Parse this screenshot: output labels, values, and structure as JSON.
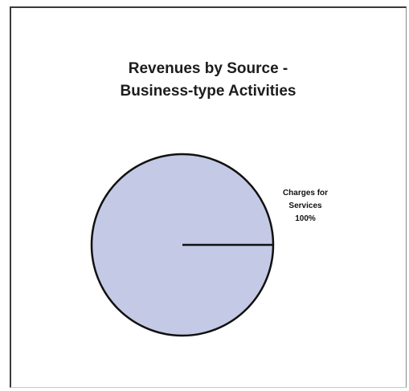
{
  "chart_data": {
    "type": "pie",
    "title_lines": [
      "Revenues by Source -",
      "Business-type Activities"
    ],
    "slices": [
      {
        "label_lines": [
          "Charges for",
          "Services"
        ],
        "percent_label": "100%",
        "value": 100,
        "color": "#c4c9e6"
      }
    ],
    "edge_color": "#111111"
  }
}
